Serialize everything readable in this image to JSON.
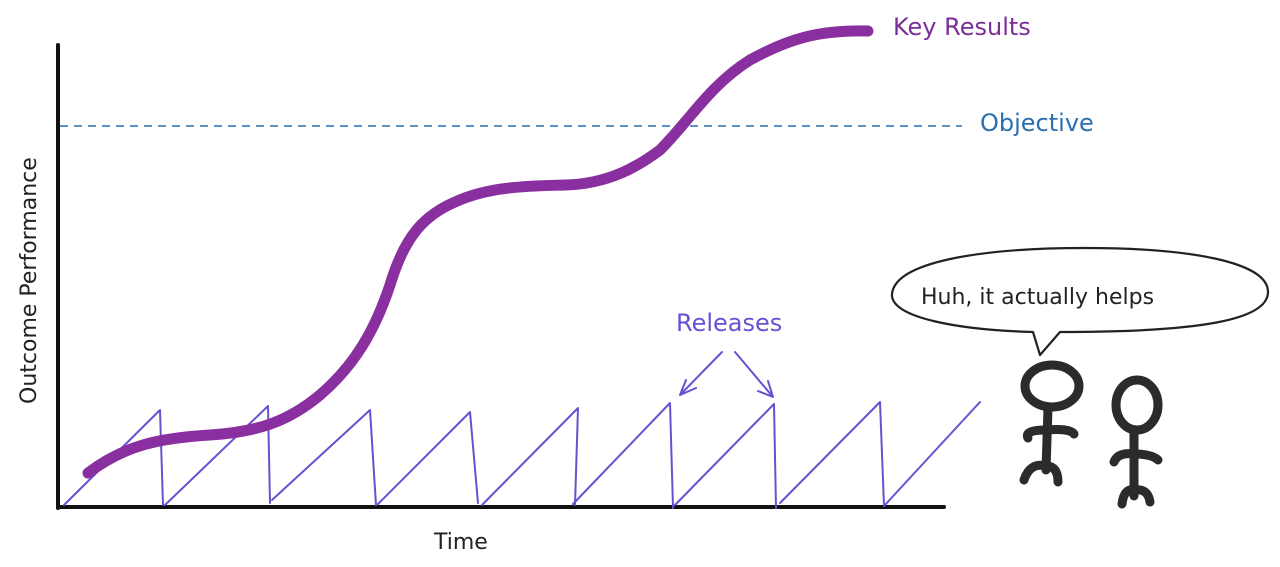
{
  "labels": {
    "key_results": "Key Results",
    "objective": "Objective",
    "releases": "Releases",
    "y_axis": "Outcome Performance",
    "x_axis": "Time",
    "speech": "Huh, it actually helps"
  },
  "colors": {
    "axis": "#111111",
    "key_results": "#8a2fa0",
    "objective": "#2a6fb0",
    "releases": "#6a4fd2",
    "figures": "#2b2b2b"
  },
  "icons": [
    "stick-figure-icon",
    "speech-bubble-icon",
    "arrow-icon"
  ]
}
